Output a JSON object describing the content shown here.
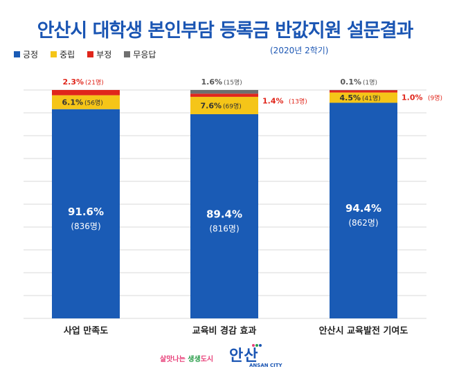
{
  "title": "안산시 대학생 본인부담 등록금 반값지원 설문결과",
  "subtitle": "(2020년 2학기)",
  "legend": [
    {
      "label": "긍정",
      "color": "#1a5bb5"
    },
    {
      "label": "중립",
      "color": "#f5c518"
    },
    {
      "label": "부정",
      "color": "#e0261b"
    },
    {
      "label": "무응답",
      "color": "#6f6f6f"
    }
  ],
  "colors": {
    "positive": "#1a5bb5",
    "neutral": "#f5c518",
    "negative": "#e0261b",
    "no_answer": "#6f6f6f",
    "grid": "#d9d9d9"
  },
  "chart_data": {
    "type": "bar",
    "stacked": true,
    "categories": [
      "사업 만족도",
      "교육비 경감 효과",
      "안산시 교육발전 기여도"
    ],
    "series": [
      {
        "name": "긍정",
        "values": [
          91.6,
          89.4,
          94.4
        ],
        "counts": [
          "(836명)",
          "(816명)",
          "(862명)"
        ],
        "labels": [
          "91.6%",
          "89.4%",
          "94.4%"
        ]
      },
      {
        "name": "중립",
        "values": [
          6.1,
          7.6,
          4.5
        ],
        "counts": [
          "(56명)",
          "(69명)",
          "(41명)"
        ],
        "labels": [
          "6.1%",
          "7.6%",
          "4.5%"
        ]
      },
      {
        "name": "부정",
        "values": [
          2.3,
          1.4,
          1.0
        ],
        "counts": [
          "(21명)",
          "(13명)",
          "(9명)"
        ],
        "labels": [
          "2.3%",
          "1.4%",
          "1.0%"
        ]
      },
      {
        "name": "무응답",
        "values": [
          0,
          1.6,
          0.1
        ],
        "counts": [
          "",
          "(15명)",
          "(1명)"
        ],
        "labels": [
          "",
          "1.6%",
          "0.1%"
        ]
      }
    ],
    "ylim": [
      0,
      100
    ],
    "grid": true,
    "legend_position": "top-left"
  },
  "footer": {
    "slogan_pre": "살맛나는",
    "slogan_highlight": "생생",
    "slogan_post": "도시",
    "logo_text": "안산",
    "logo_sub": "ANSAN CITY"
  }
}
